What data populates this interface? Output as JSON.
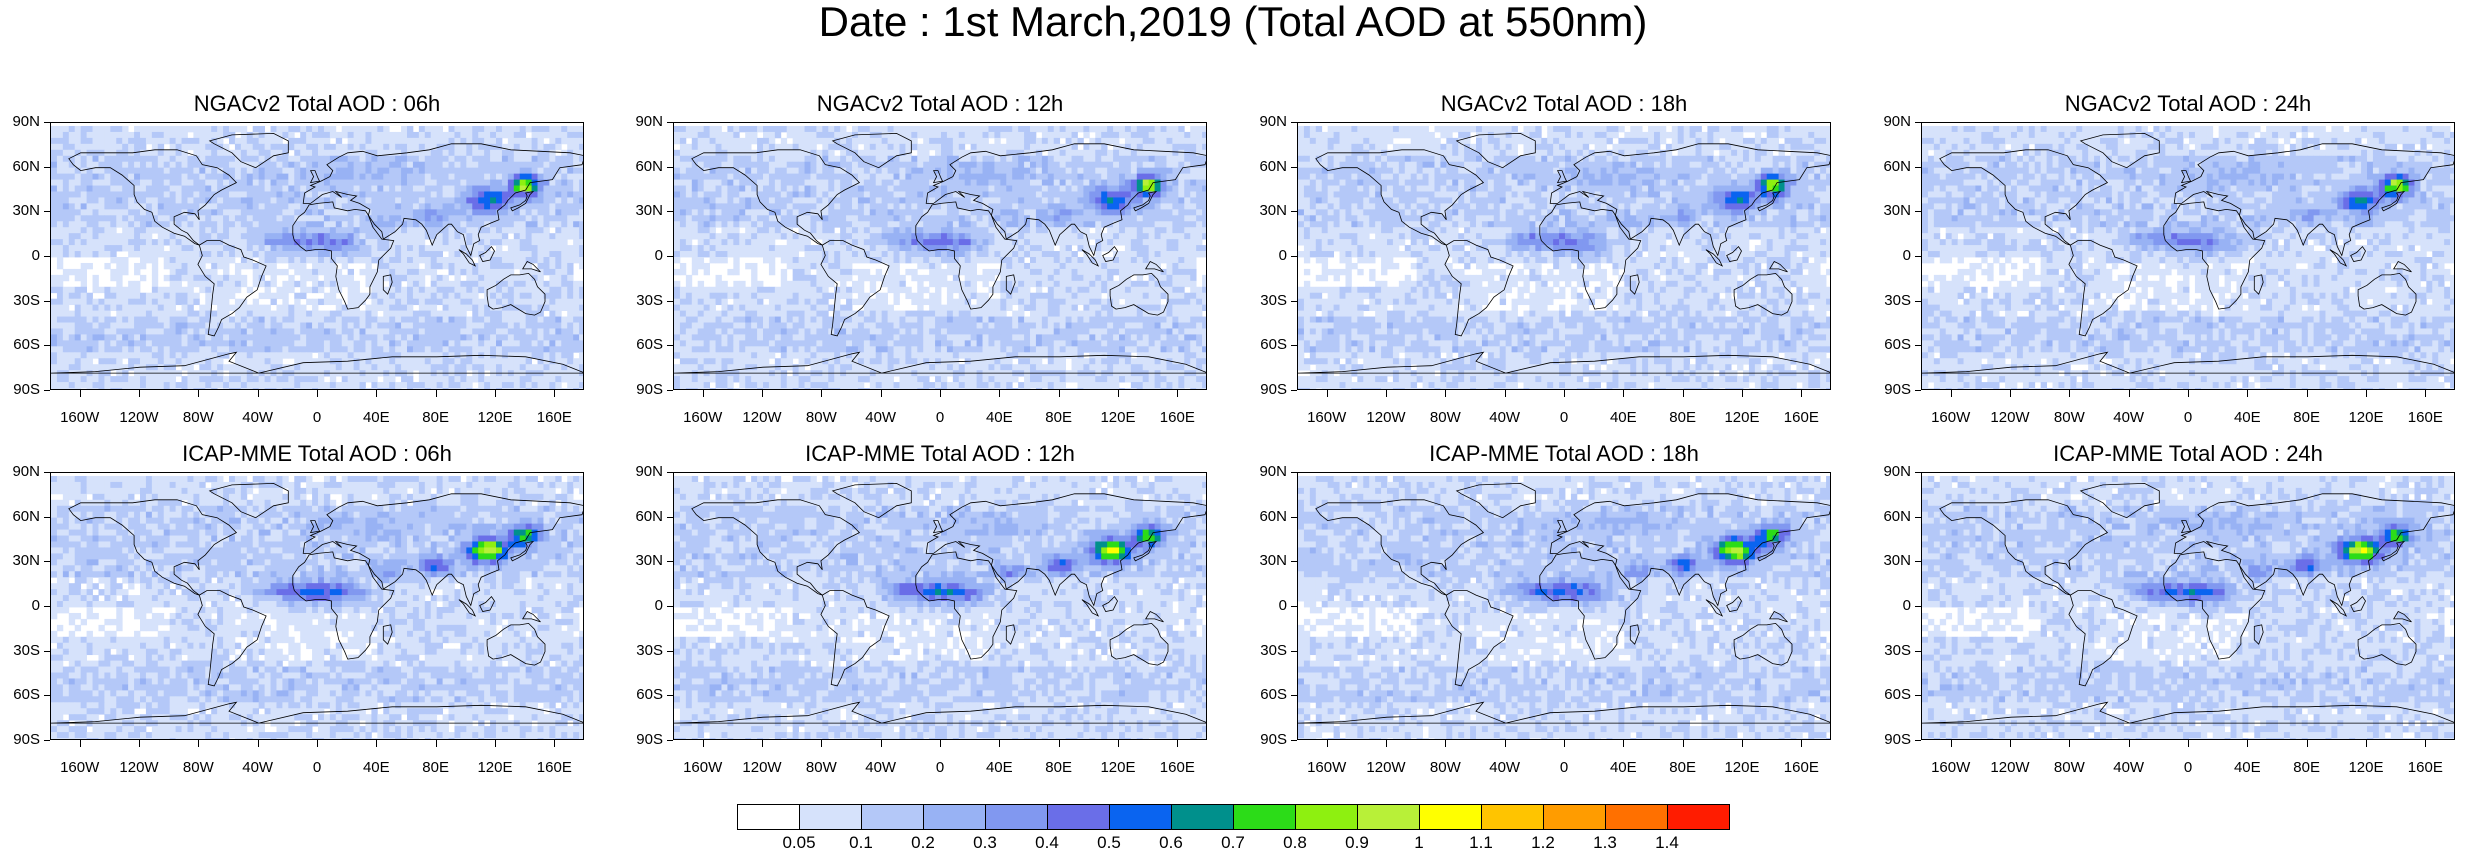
{
  "title": "Date : 1st March,2019 (Total AOD at 550nm)",
  "lat_labels": [
    "90N",
    "60N",
    "30N",
    "0",
    "30S",
    "60S",
    "90S"
  ],
  "lon_labels": [
    "160W",
    "120W",
    "80W",
    "40W",
    "0",
    "40E",
    "80E",
    "120E",
    "160E"
  ],
  "panels": [
    {
      "title": "NGACv2 Total AOD : 06h",
      "model": "NGACv2",
      "hour": "06h"
    },
    {
      "title": "NGACv2 Total AOD : 12h",
      "model": "NGACv2",
      "hour": "12h"
    },
    {
      "title": "NGACv2 Total AOD : 18h",
      "model": "NGACv2",
      "hour": "18h"
    },
    {
      "title": "NGACv2 Total AOD : 24h",
      "model": "NGACv2",
      "hour": "24h"
    },
    {
      "title": "ICAP-MME Total AOD : 06h",
      "model": "ICAP-MME",
      "hour": "06h"
    },
    {
      "title": "ICAP-MME Total AOD : 12h",
      "model": "ICAP-MME",
      "hour": "12h"
    },
    {
      "title": "ICAP-MME Total AOD : 18h",
      "model": "ICAP-MME",
      "hour": "18h"
    },
    {
      "title": "ICAP-MME Total AOD : 24h",
      "model": "ICAP-MME",
      "hour": "24h"
    }
  ],
  "colorbar": {
    "labels": [
      "0.05",
      "0.1",
      "0.2",
      "0.3",
      "0.4",
      "0.5",
      "0.6",
      "0.7",
      "0.8",
      "0.9",
      "1",
      "1.1",
      "1.2",
      "1.3",
      "1.4"
    ],
    "colors": [
      "#ffffff",
      "#d6e2fb",
      "#b4c8f8",
      "#98b2f4",
      "#8198f0",
      "#6a6ee8",
      "#0a64f0",
      "#00908c",
      "#2cdc18",
      "#8ef010",
      "#b8f038",
      "#ffff00",
      "#ffc400",
      "#ff9c00",
      "#ff7000",
      "#ff1c00"
    ]
  }
}
